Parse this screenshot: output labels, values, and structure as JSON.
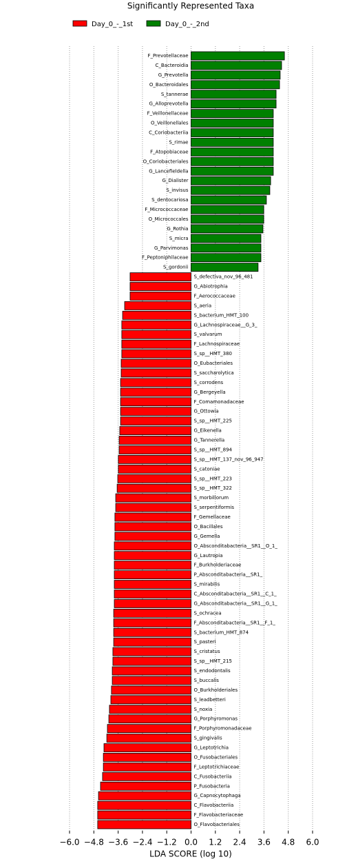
{
  "chart_data": {
    "type": "bar",
    "orientation": "horizontal",
    "title": "Significantly Represented Taxa",
    "xlabel": "LDA SCORE (log 10)",
    "categories": [
      "F_Prevotellaceae",
      "C_Bacteroidia",
      "G_Prevotella",
      "O_Bacteroidales",
      "S_tannerae",
      "G_Alloprevotella",
      "F_Veillonellaceae",
      "O_Veillonellales",
      "C_Coriobacteriia",
      "S_rimae",
      "F_Atopobiaceae",
      "O_Coriobacteriales",
      "G_Lancefieldella",
      "G_Dialister",
      "S_invisus",
      "S_dentocariosa",
      "F_Micrococcaceae",
      "O_Micrococcales",
      "G_Rothia",
      "S_micra",
      "G_Parvimonas",
      "F_Peptoniphilaceae",
      "S_gordonii",
      "S_defectiva_nov_96_481",
      "G_Abiotrophia",
      "F_Aerococcaceae",
      "S_aeria",
      "S_bacterium_HMT_100",
      "G_Lachnospiraceae__G_3_",
      "S_valvarum",
      "F_Lachnospiraceae",
      "S_sp__HMT_380",
      "O_Eubacteriales",
      "S_saccharolytica",
      "S_corrodens",
      "G_Bergeyella",
      "F_Comamonadaceae",
      "G_Ottowia",
      "S_sp__HMT_225",
      "G_Eikenella",
      "G_Tannerella",
      "S_sp__HMT_894",
      "S_sp__HMT_137_nov_96_947",
      "S_catoniae",
      "S_sp__HMT_223",
      "S_sp__HMT_322",
      "S_morbillorum",
      "S_serpentiformis",
      "F_Gemellaceae",
      "O_Bacillales",
      "G_Gemella",
      "O_Absconditabacteria__SR1__O_1_",
      "G_Lautropia",
      "F_Burkholderiaceae",
      "P_Absconditabacteria__SR1_",
      "S_mirabilis",
      "C_Absconditabacteria__SR1__C_1_",
      "G_Absconditabacteria__SR1__G_1_",
      "S_ochracea",
      "F_Absconditabacteria__SR1__F_1_",
      "S_bacterium_HMT_874",
      "S_pasteri",
      "S_cristatus",
      "S_sp__HMT_215",
      "S_endodontalis",
      "S_buccalis",
      "O_Burkholderiales",
      "S_leadbetteri",
      "S_noxia",
      "G_Porphyromonas",
      "F_Porphyromonadaceae",
      "S_gingivalis",
      "G_Leptotrichia",
      "O_Fusobacteriales",
      "F_Leptotrichiaceae",
      "C_Fusobacteriia",
      "P_Fusobacteria",
      "G_Capnocytophaga",
      "C_Flavobacteriia",
      "F_Flavobacteriaceae",
      "O_Flavobacteriales"
    ],
    "series": [
      {
        "name": "Day_0_-_1st",
        "color": "#ff0000",
        "values": [
          null,
          null,
          null,
          null,
          null,
          null,
          null,
          null,
          null,
          null,
          null,
          null,
          null,
          null,
          null,
          null,
          null,
          null,
          null,
          null,
          null,
          null,
          null,
          -3.01,
          -3.01,
          -3.01,
          -3.28,
          -3.38,
          -3.42,
          -3.42,
          -3.42,
          -3.42,
          -3.45,
          -3.45,
          -3.48,
          -3.48,
          -3.48,
          -3.48,
          -3.48,
          -3.52,
          -3.55,
          -3.55,
          -3.59,
          -3.59,
          -3.62,
          -3.65,
          -3.72,
          -3.72,
          -3.76,
          -3.76,
          -3.76,
          -3.79,
          -3.79,
          -3.79,
          -3.79,
          -3.79,
          -3.79,
          -3.79,
          -3.82,
          -3.82,
          -3.82,
          -3.82,
          -3.86,
          -3.86,
          -3.89,
          -3.89,
          -3.93,
          -3.96,
          -4.03,
          -4.06,
          -4.13,
          -4.16,
          -4.3,
          -4.33,
          -4.33,
          -4.37,
          -4.47,
          -4.57,
          -4.61,
          -4.61,
          -4.61
        ]
      },
      {
        "name": "Day_0_-_2nd",
        "color": "#008000",
        "values": [
          4.61,
          4.47,
          4.4,
          4.37,
          4.2,
          4.2,
          4.06,
          4.06,
          4.06,
          4.06,
          4.06,
          4.06,
          4.06,
          3.93,
          3.89,
          3.72,
          3.59,
          3.59,
          3.55,
          3.45,
          3.45,
          3.45,
          3.31,
          null,
          null,
          null,
          null,
          null,
          null,
          null,
          null,
          null,
          null,
          null,
          null,
          null,
          null,
          null,
          null,
          null,
          null,
          null,
          null,
          null,
          null,
          null,
          null,
          null,
          null,
          null,
          null,
          null,
          null,
          null,
          null,
          null,
          null,
          null,
          null,
          null,
          null,
          null,
          null,
          null,
          null,
          null,
          null,
          null,
          null,
          null,
          null,
          null,
          null,
          null,
          null,
          null,
          null,
          null,
          null,
          null,
          null
        ]
      }
    ],
    "xlim": [
      -6.0,
      6.0
    ],
    "xticks": [
      {
        "value": -6.0,
        "label": "−6.0"
      },
      {
        "value": -4.8,
        "label": "−4.8"
      },
      {
        "value": -3.6,
        "label": "−3.6"
      },
      {
        "value": -2.4,
        "label": "−2.4"
      },
      {
        "value": -1.2,
        "label": "−1.2"
      },
      {
        "value": 0.0,
        "label": "0.0"
      },
      {
        "value": 1.2,
        "label": "1.2"
      },
      {
        "value": 2.4,
        "label": "2.4"
      },
      {
        "value": 3.6,
        "label": "3.6"
      },
      {
        "value": 4.8,
        "label": "4.8"
      },
      {
        "value": 6.0,
        "label": "6.0"
      }
    ],
    "grid": true
  }
}
